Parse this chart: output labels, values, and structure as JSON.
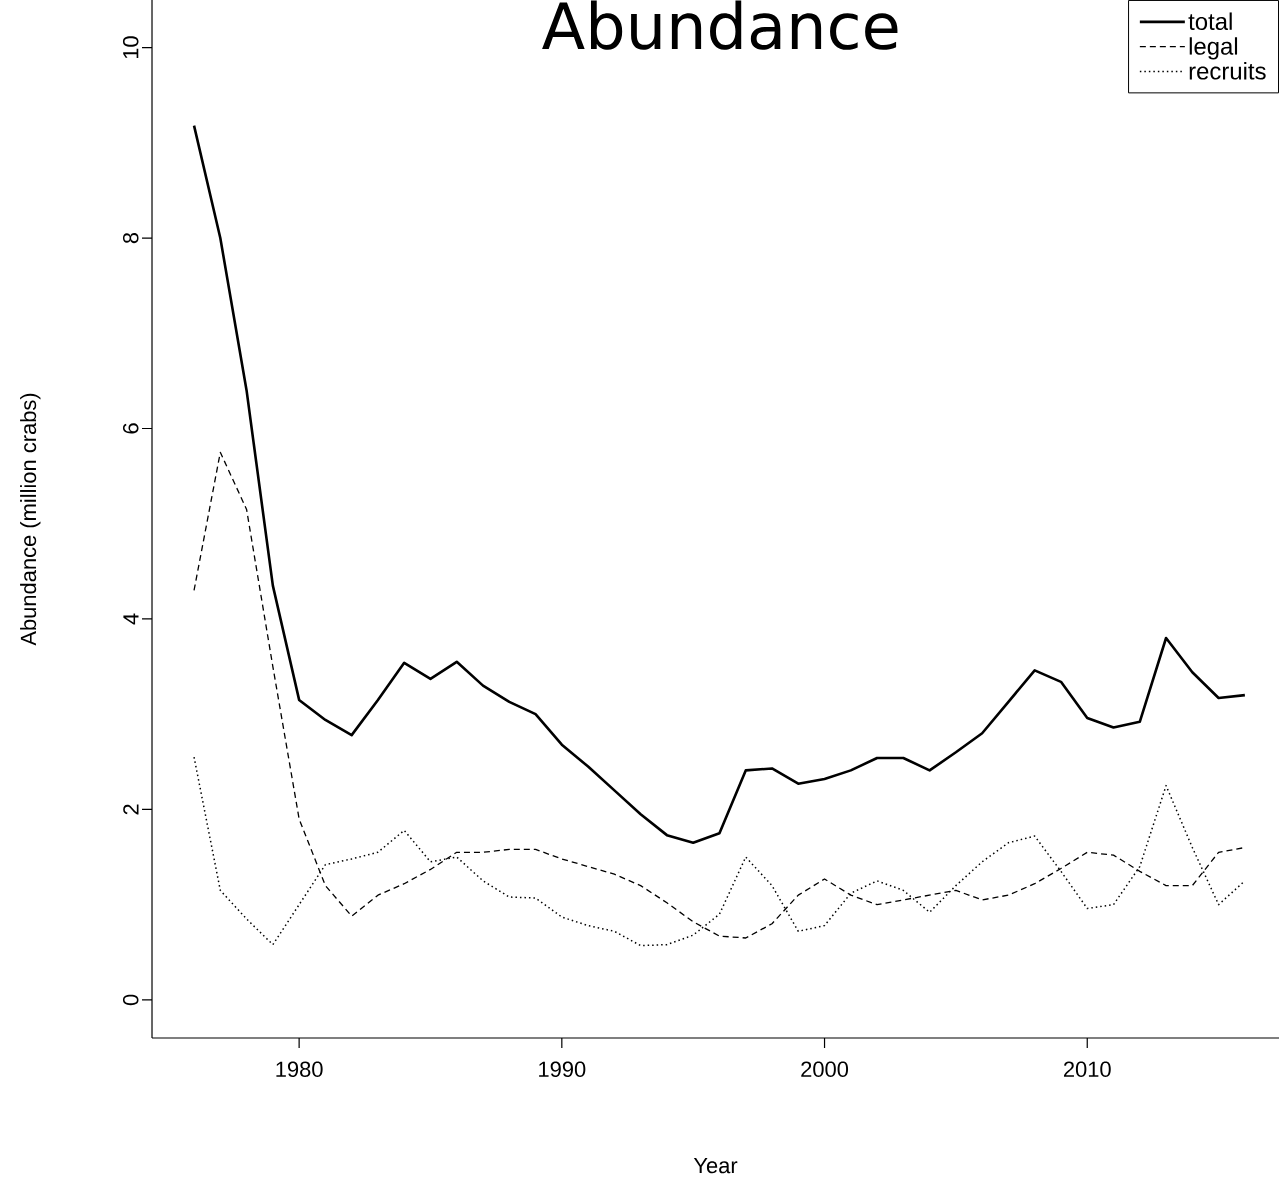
{
  "chart_data": {
    "type": "line",
    "title": "Abundance",
    "xlabel": "Year",
    "ylabel": "Abundance (million crabs)",
    "x": [
      1976,
      1977,
      1978,
      1979,
      1980,
      1981,
      1982,
      1983,
      1984,
      1985,
      1986,
      1987,
      1988,
      1989,
      1990,
      1991,
      1992,
      1993,
      1994,
      1995,
      1996,
      1997,
      1998,
      1999,
      2000,
      2001,
      2002,
      2003,
      2004,
      2005,
      2006,
      2007,
      2008,
      2009,
      2010,
      2011,
      2012,
      2013,
      2014,
      2015,
      2016
    ],
    "series": [
      {
        "name": "total",
        "color": "#000000",
        "line_style": "solid",
        "values": [
          9.18,
          8.0,
          6.4,
          4.35,
          3.15,
          2.94,
          2.78,
          3.15,
          3.54,
          3.37,
          3.55,
          3.3,
          3.13,
          3.0,
          2.68,
          2.45,
          2.2,
          1.95,
          1.73,
          1.65,
          1.75,
          2.41,
          2.43,
          2.27,
          2.32,
          2.41,
          2.54,
          2.54,
          2.41,
          2.6,
          2.8,
          3.13,
          3.46,
          3.34,
          2.96,
          2.86,
          2.92,
          3.8,
          3.44,
          3.17,
          3.2
        ]
      },
      {
        "name": "legal",
        "color": "#000000",
        "line_style": "dashed",
        "values": [
          4.3,
          5.75,
          5.15,
          3.5,
          1.9,
          1.2,
          0.88,
          1.1,
          1.22,
          1.37,
          1.55,
          1.55,
          1.58,
          1.58,
          1.48,
          1.4,
          1.32,
          1.2,
          1.02,
          0.82,
          0.67,
          0.65,
          0.8,
          1.1,
          1.27,
          1.1,
          1.0,
          1.05,
          1.1,
          1.15,
          1.05,
          1.1,
          1.22,
          1.38,
          1.55,
          1.52,
          1.35,
          1.2,
          1.2,
          1.55,
          1.6
        ]
      },
      {
        "name": "recruits",
        "color": "#000000",
        "line_style": "dotted",
        "values": [
          2.55,
          1.15,
          0.85,
          0.58,
          1.0,
          1.42,
          1.48,
          1.55,
          1.78,
          1.45,
          1.5,
          1.25,
          1.08,
          1.07,
          0.87,
          0.78,
          0.72,
          0.57,
          0.58,
          0.68,
          0.9,
          1.5,
          1.2,
          0.72,
          0.78,
          1.12,
          1.25,
          1.15,
          0.92,
          1.2,
          1.45,
          1.65,
          1.72,
          1.35,
          0.96,
          1.0,
          1.4,
          2.25,
          1.6,
          1.0,
          1.25
        ]
      }
    ],
    "xlim": [
      1974.4,
      2017.3
    ],
    "ylim": [
      -0.4,
      10.5
    ],
    "xticks": [
      1980,
      1990,
      2000,
      2010
    ],
    "yticks": [
      0,
      2,
      4,
      6,
      8,
      10
    ],
    "grid": false,
    "legend": "top right",
    "marker": "none"
  }
}
